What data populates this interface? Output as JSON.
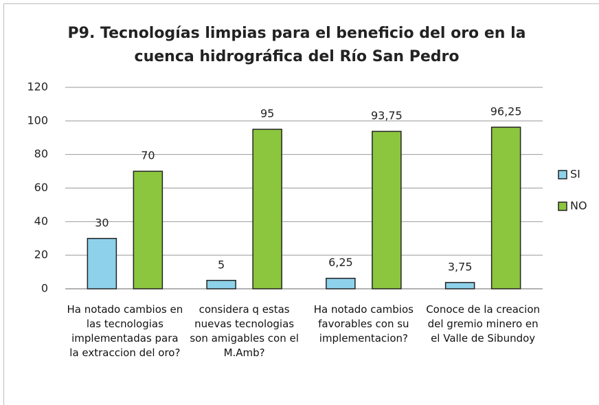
{
  "chart_data": {
    "type": "bar",
    "title": "P9. Tecnologías limpias para el beneficio del oro en la cuenca hidrográfica del Río San Pedro",
    "categories": [
      "Ha notado cambios en las tecnologias implementadas para la extraccion del oro?",
      "considera q estas nuevas tecnologias son amigables con el M.Amb?",
      "Ha notado cambios favorables con su implementacion?",
      "Conoce de la creacion del gremio minero en el Valle de Sibundoy"
    ],
    "series": [
      {
        "name": "SI",
        "color": "#8ed1ea",
        "values": [
          30,
          5,
          6.25,
          3.75
        ],
        "value_labels": [
          "30",
          "5",
          "6,25",
          "3,75"
        ]
      },
      {
        "name": "NO",
        "color": "#8cc63e",
        "values": [
          70,
          95,
          93.75,
          96.25
        ],
        "value_labels": [
          "70",
          "95",
          "93,75",
          "96,25"
        ]
      }
    ],
    "ylim": [
      0,
      120
    ],
    "yticks": [
      0,
      20,
      40,
      60,
      80,
      100,
      120
    ],
    "grid": true,
    "legend": "right"
  }
}
